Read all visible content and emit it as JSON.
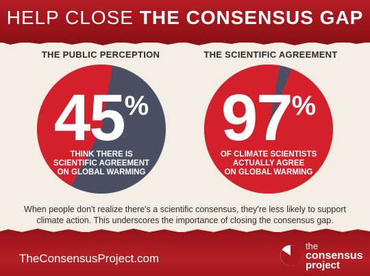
{
  "header": {
    "lead": "HELP CLOSE",
    "emphasis": "THE CONSENSUS GAP"
  },
  "panels": [
    {
      "label": "THE PUBLIC PERCEPTION",
      "value": "45",
      "unit": "%",
      "percent": 45,
      "caption": [
        "THINK THERE IS",
        "SCIENTIFIC AGREEMENT",
        "ON GLOBAL WARMING"
      ]
    },
    {
      "label": "THE SCIENTIFIC AGREEMENT",
      "value": "97",
      "unit": "%",
      "percent": 97,
      "caption": [
        "OF CLIMATE SCIENTISTS",
        "ACTUALLY AGREE",
        "ON GLOBAL WARMING"
      ]
    }
  ],
  "body": {
    "line1": "When people don't realize there's a scientific consensus, they're less likely to support",
    "line2": "climate action. This underscores the importance of closing the consensus gap."
  },
  "footer": {
    "url": "TheConsensusProject.com",
    "logo_line1": "the",
    "logo_line2": "consensus",
    "logo_line3": "project"
  },
  "colors": {
    "banner_red": "#a8181e",
    "pie_agree": "#d4202a",
    "pie_other": "#4a4f63",
    "paper": "#f3ede3"
  }
}
